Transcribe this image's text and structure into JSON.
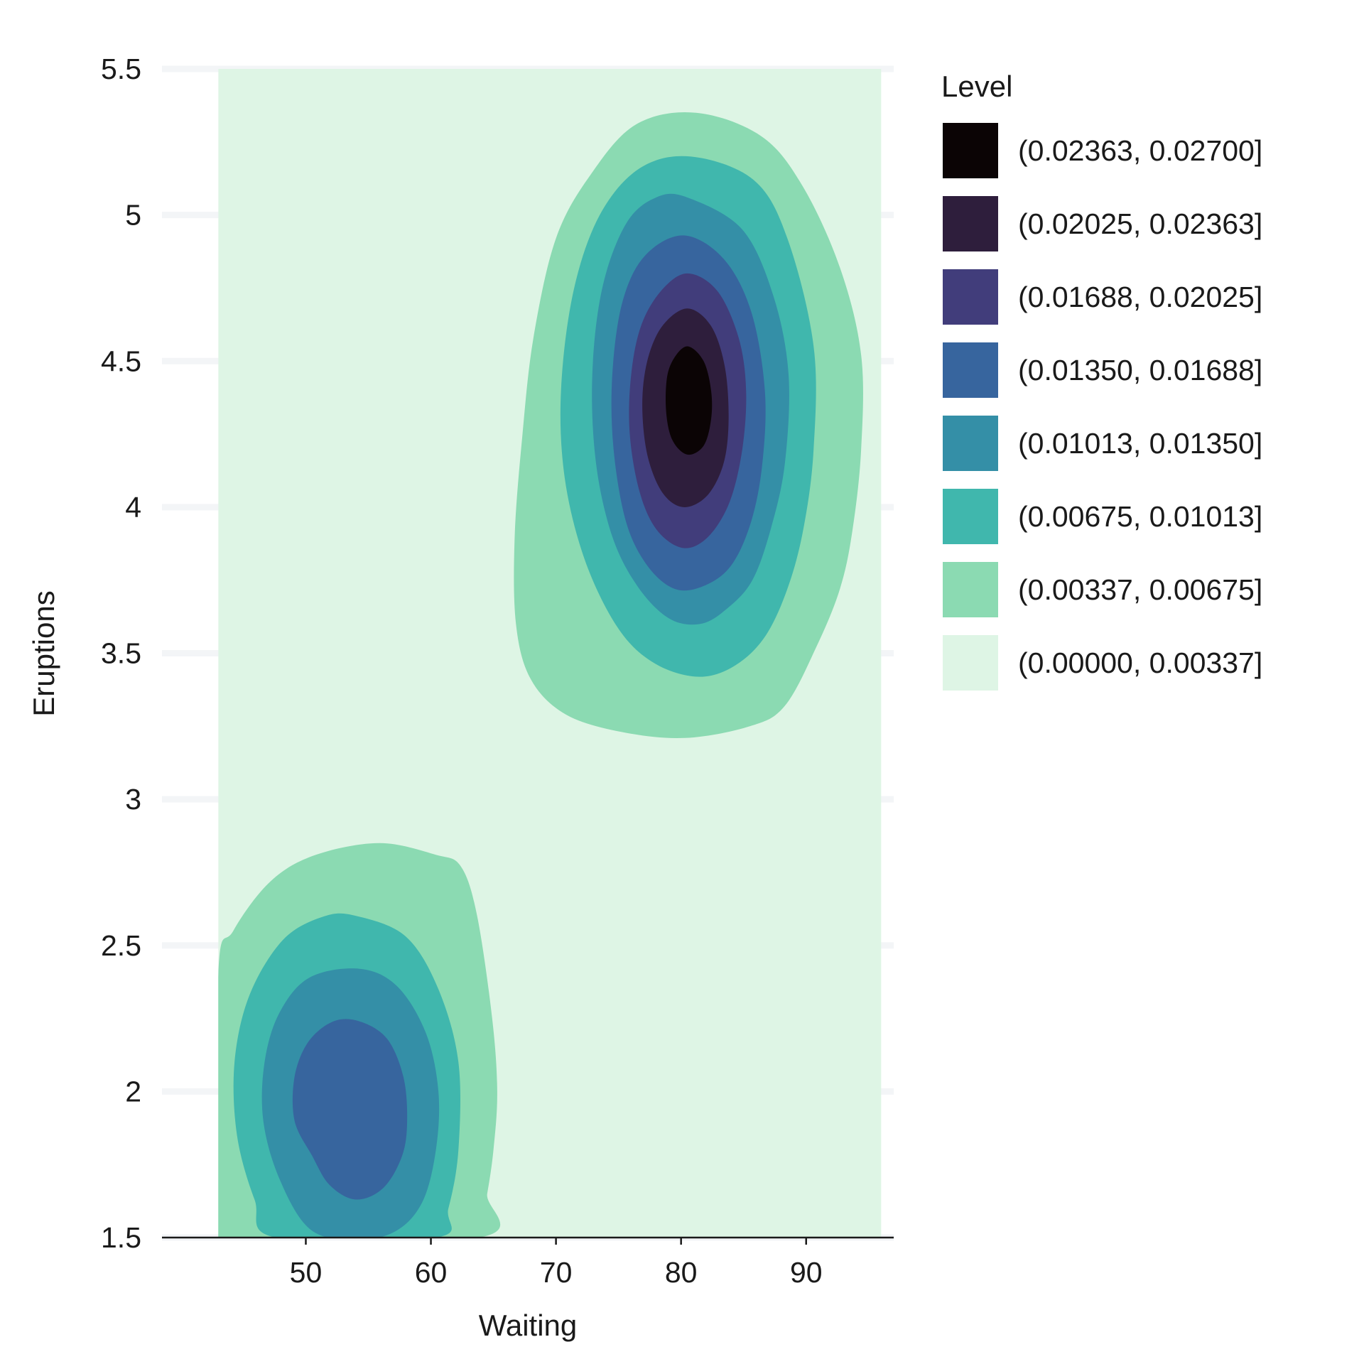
{
  "chart_data": {
    "type": "contour",
    "title": "",
    "xlabel": "Waiting",
    "ylabel": "Eruptions",
    "xlim": [
      38.5,
      97
    ],
    "ylim": [
      1.5,
      5.5
    ],
    "x_ticks": [
      50,
      60,
      70,
      80,
      90
    ],
    "y_ticks": [
      1.5,
      2,
      2.5,
      3,
      3.5,
      4,
      4.5,
      5,
      5.5
    ],
    "x_tick_labels": [
      "50",
      "60",
      "70",
      "80",
      "90"
    ],
    "y_tick_labels": [
      "1.5",
      "2",
      "2.5",
      "3",
      "3.5",
      "4",
      "4.5",
      "5",
      "5.5"
    ],
    "data_extent": {
      "x": [
        43,
        96
      ],
      "y": [
        1.5,
        5.5
      ]
    },
    "grid": "horizontal",
    "legend": {
      "title": "Level",
      "placement": "right",
      "entries": [
        {
          "label": "(0.02363, 0.02700]",
          "color": "#0b0405"
        },
        {
          "label": "(0.02025, 0.02363]",
          "color": "#2e1e3c"
        },
        {
          "label": "(0.01688, 0.02025]",
          "color": "#413d7b"
        },
        {
          "label": "(0.01350, 0.01688]",
          "color": "#37659e"
        },
        {
          "label": "(0.01013, 0.01350]",
          "color": "#348fa7"
        },
        {
          "label": "(0.00675, 0.01013]",
          "color": "#40b7ad"
        },
        {
          "label": "(0.00337, 0.00675]",
          "color": "#8bdab2"
        },
        {
          "label": "(0.00000, 0.00337]",
          "color": "#def5e5"
        }
      ]
    },
    "levels": [
      {
        "range": "(0.00337, 0.00675]",
        "polygons": [
          [
            [
              81.2,
              5.35
            ],
            [
              86.4,
              5.27
            ],
            [
              89.7,
              5.1
            ],
            [
              92.7,
              4.82
            ],
            [
              94.4,
              4.52
            ],
            [
              94.4,
              4.2
            ],
            [
              93.7,
              3.92
            ],
            [
              92.7,
              3.72
            ],
            [
              90.8,
              3.52
            ],
            [
              88.3,
              3.32
            ],
            [
              85.5,
              3.25
            ],
            [
              80.3,
              3.21
            ],
            [
              75.3,
              3.23
            ],
            [
              70.8,
              3.29
            ],
            [
              68.0,
              3.41
            ],
            [
              66.8,
              3.6
            ],
            [
              66.7,
              3.9
            ],
            [
              67.3,
              4.24
            ],
            [
              68.2,
              4.58
            ],
            [
              70.0,
              4.92
            ],
            [
              72.8,
              5.14
            ],
            [
              76.4,
              5.31
            ]
          ],
          [
            [
              43.0,
              2.4
            ],
            [
              44.2,
              2.55
            ],
            [
              47.2,
              2.72
            ],
            [
              50.8,
              2.81
            ],
            [
              55.9,
              2.85
            ],
            [
              60.4,
              2.81
            ],
            [
              62.4,
              2.77
            ],
            [
              63.7,
              2.6
            ],
            [
              64.9,
              2.25
            ],
            [
              65.3,
              2.0
            ],
            [
              65.0,
              1.8
            ],
            [
              64.5,
              1.65
            ],
            [
              63.8,
              1.5
            ],
            [
              43.0,
              1.5
            ]
          ]
        ]
      },
      {
        "range": "(0.00675, 0.01013]",
        "polygons": [
          [
            [
              80.8,
              5.2
            ],
            [
              85.8,
              5.12
            ],
            [
              88.5,
              4.92
            ],
            [
              90.6,
              4.55
            ],
            [
              90.6,
              4.2
            ],
            [
              89.8,
              3.93
            ],
            [
              88.5,
              3.72
            ],
            [
              86.6,
              3.55
            ],
            [
              84.0,
              3.45
            ],
            [
              81.1,
              3.42
            ],
            [
              77.7,
              3.47
            ],
            [
              74.9,
              3.59
            ],
            [
              72.3,
              3.82
            ],
            [
              70.7,
              4.1
            ],
            [
              70.4,
              4.4
            ],
            [
              71.4,
              4.74
            ],
            [
              73.5,
              5.0
            ],
            [
              76.7,
              5.16
            ]
          ],
          [
            [
              54.1,
              2.6
            ],
            [
              58.0,
              2.53
            ],
            [
              60.6,
              2.35
            ],
            [
              62.2,
              2.1
            ],
            [
              62.2,
              1.8
            ],
            [
              61.4,
              1.6
            ],
            [
              60.4,
              1.5
            ],
            [
              47.6,
              1.5
            ],
            [
              45.9,
              1.63
            ],
            [
              44.5,
              1.85
            ],
            [
              44.3,
              2.1
            ],
            [
              45.5,
              2.33
            ],
            [
              48.2,
              2.52
            ],
            [
              51.5,
              2.6
            ]
          ]
        ]
      },
      {
        "range": "(0.01013, 0.01350]",
        "polygons": [
          [
            [
              80.5,
              5.06
            ],
            [
              84.9,
              4.95
            ],
            [
              87.4,
              4.72
            ],
            [
              88.6,
              4.45
            ],
            [
              88.3,
              4.15
            ],
            [
              87.2,
              3.93
            ],
            [
              85.7,
              3.75
            ],
            [
              83.6,
              3.65
            ],
            [
              81.5,
              3.6
            ],
            [
              79.0,
              3.62
            ],
            [
              76.5,
              3.73
            ],
            [
              74.5,
              3.9
            ],
            [
              73.2,
              4.15
            ],
            [
              72.9,
              4.45
            ],
            [
              73.7,
              4.75
            ],
            [
              75.6,
              4.97
            ],
            [
              78.0,
              5.06
            ]
          ],
          [
            [
              54.3,
              2.42
            ],
            [
              57.3,
              2.36
            ],
            [
              59.6,
              2.2
            ],
            [
              60.6,
              2.0
            ],
            [
              60.4,
              1.8
            ],
            [
              59.3,
              1.62
            ],
            [
              57.1,
              1.52
            ],
            [
              53.8,
              1.49
            ],
            [
              50.3,
              1.53
            ],
            [
              47.9,
              1.7
            ],
            [
              46.6,
              1.9
            ],
            [
              46.7,
              2.1
            ],
            [
              47.9,
              2.27
            ],
            [
              50.3,
              2.39
            ]
          ]
        ]
      },
      {
        "range": "(0.01350, 0.01688]",
        "polygons": [
          [
            [
              80.2,
              4.93
            ],
            [
              83.4,
              4.85
            ],
            [
              85.6,
              4.67
            ],
            [
              86.7,
              4.4
            ],
            [
              86.5,
              4.15
            ],
            [
              85.6,
              3.95
            ],
            [
              84.0,
              3.8
            ],
            [
              81.8,
              3.73
            ],
            [
              79.5,
              3.72
            ],
            [
              77.3,
              3.8
            ],
            [
              75.6,
              3.95
            ],
            [
              74.6,
              4.2
            ],
            [
              74.5,
              4.45
            ],
            [
              75.3,
              4.7
            ],
            [
              77.1,
              4.86
            ]
          ],
          [
            [
              54.3,
              2.24
            ],
            [
              56.5,
              2.18
            ],
            [
              57.8,
              2.05
            ],
            [
              58.1,
              1.9
            ],
            [
              57.7,
              1.78
            ],
            [
              56.2,
              1.67
            ],
            [
              54.0,
              1.63
            ],
            [
              51.9,
              1.68
            ],
            [
              50.5,
              1.78
            ],
            [
              49.1,
              1.9
            ],
            [
              49.1,
              2.05
            ],
            [
              50.2,
              2.17
            ],
            [
              52.2,
              2.24
            ]
          ]
        ]
      },
      {
        "range": "(0.01688, 0.02025]",
        "polygons": [
          [
            [
              80.5,
              4.8
            ],
            [
              82.9,
              4.74
            ],
            [
              84.6,
              4.58
            ],
            [
              85.2,
              4.4
            ],
            [
              84.9,
              4.2
            ],
            [
              83.9,
              4.02
            ],
            [
              82.2,
              3.9
            ],
            [
              80.2,
              3.86
            ],
            [
              78.1,
              3.92
            ],
            [
              76.7,
              4.05
            ],
            [
              75.9,
              4.25
            ],
            [
              76.0,
              4.45
            ],
            [
              76.8,
              4.62
            ],
            [
              78.4,
              4.74
            ]
          ]
        ]
      },
      {
        "range": "(0.02025, 0.02363]",
        "polygons": [
          [
            [
              80.5,
              4.68
            ],
            [
              82.4,
              4.62
            ],
            [
              83.5,
              4.48
            ],
            [
              83.8,
              4.3
            ],
            [
              83.4,
              4.15
            ],
            [
              82.1,
              4.04
            ],
            [
              80.2,
              4.0
            ],
            [
              78.5,
              4.05
            ],
            [
              77.3,
              4.18
            ],
            [
              76.9,
              4.35
            ],
            [
              77.3,
              4.5
            ],
            [
              78.5,
              4.62
            ]
          ]
        ]
      },
      {
        "range": "(0.02363, 0.02700]",
        "polygons": [
          [
            [
              80.6,
              4.55
            ],
            [
              81.8,
              4.5
            ],
            [
              82.4,
              4.4
            ],
            [
              82.4,
              4.3
            ],
            [
              81.8,
              4.21
            ],
            [
              80.5,
              4.18
            ],
            [
              79.3,
              4.23
            ],
            [
              78.8,
              4.33
            ],
            [
              78.9,
              4.45
            ],
            [
              79.6,
              4.52
            ]
          ]
        ]
      }
    ]
  }
}
